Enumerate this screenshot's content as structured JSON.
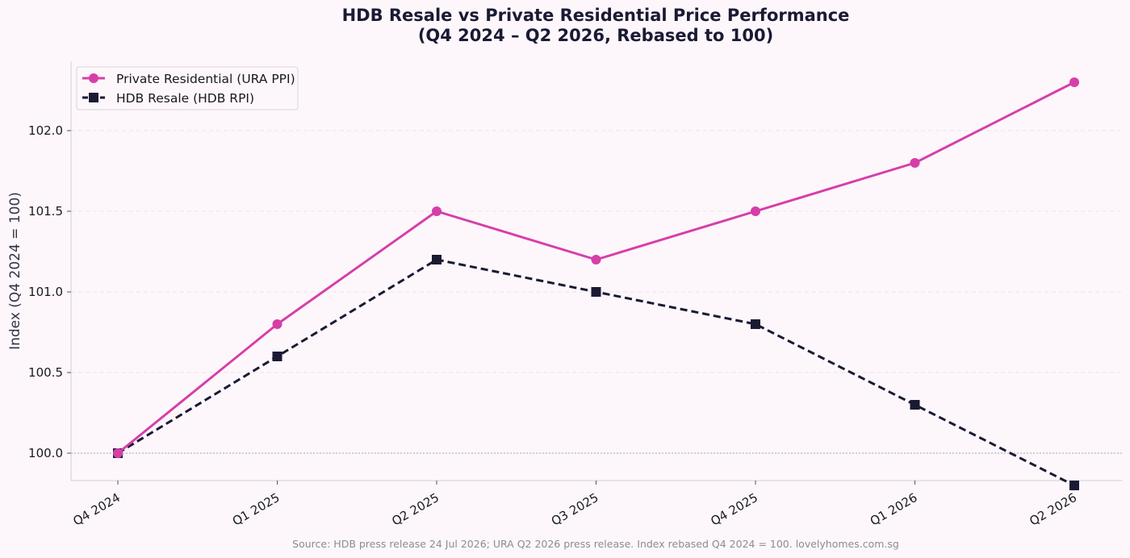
{
  "chart_data": {
    "type": "line",
    "title_line1": "HDB Resale vs Private Residential Price Performance",
    "title_line2": "(Q4 2024 – Q2 2026, Rebased to 100)",
    "xlabel": "",
    "ylabel": "Index (Q4 2024 = 100)",
    "categories": [
      "Q4 2024",
      "Q1 2025",
      "Q2 2025",
      "Q3 2025",
      "Q4 2025",
      "Q1 2026",
      "Q2 2026"
    ],
    "yticks": [
      "100.0",
      "100.5",
      "101.0",
      "101.5",
      "102.0"
    ],
    "ylim": [
      99.83,
      102.43
    ],
    "grid": "horizontal-dashed",
    "reference_line": 100,
    "legend_position": "top-left",
    "series": [
      {
        "name": "Private Residential (URA PPI)",
        "values": [
          100.0,
          100.8,
          101.5,
          101.2,
          101.5,
          101.8,
          102.3
        ],
        "color": "#d63fa8",
        "line_style": "solid",
        "marker": "circle"
      },
      {
        "name": "HDB Resale (HDB RPI)",
        "values": [
          100.0,
          100.6,
          101.2,
          101.0,
          100.8,
          100.3,
          99.8
        ],
        "color": "#1a1a33",
        "line_style": "dashed",
        "marker": "square"
      }
    ],
    "source_note": "Source: HDB press release 24 Jul 2026; URA Q2 2026 press release. Index rebased Q4 2024 = 100. lovelyhomes.com.sg"
  }
}
